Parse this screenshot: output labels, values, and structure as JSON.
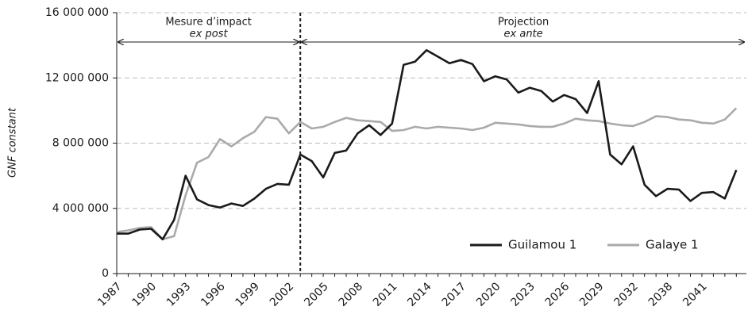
{
  "chart_data": {
    "type": "line",
    "y_label": "GNF constant",
    "annotations": [
      "Mesure d’impact",
      "ex post",
      "Projection",
      "ex ante"
    ],
    "categories": [
      "1987",
      null,
      null,
      "1990",
      null,
      null,
      "1993",
      null,
      null,
      "1996",
      null,
      null,
      "1999",
      null,
      null,
      "2002",
      null,
      null,
      "2005",
      null,
      null,
      "2008",
      null,
      null,
      "2011",
      null,
      null,
      "2014",
      null,
      null,
      "2017",
      null,
      null,
      "2020",
      null,
      null,
      "2023",
      null,
      null,
      "2026",
      null,
      null,
      "2029",
      null,
      null,
      "2032",
      null,
      null,
      "2038",
      null,
      null,
      "2041",
      null,
      null,
      null
    ],
    "series": [
      {
        "name": "Guilamou 1",
        "color": "#1a1a1a",
        "values": [
          2450000,
          2450000,
          2700000,
          2750000,
          2100000,
          3300000,
          6000000,
          4550000,
          4200000,
          4050000,
          4300000,
          4150000,
          4600000,
          5200000,
          5500000,
          5450000,
          7300000,
          6900000,
          5900000,
          7400000,
          7550000,
          8600000,
          9100000,
          8500000,
          9200000,
          12800000,
          13000000,
          13700000,
          13300000,
          12900000,
          13100000,
          12850000,
          11800000,
          12100000,
          11900000,
          11100000,
          11400000,
          11200000,
          10550000,
          10950000,
          10700000,
          9850000,
          11800000,
          7300000,
          6700000,
          7800000,
          5450000,
          4750000,
          5200000,
          5150000,
          4450000,
          4950000,
          5000000,
          4600000,
          6350000
        ]
      },
      {
        "name": "Galaye 1",
        "color": "#aaaaaa",
        "values": [
          2550000,
          2650000,
          2800000,
          2850000,
          2100000,
          2300000,
          4800000,
          6800000,
          7150000,
          8250000,
          7800000,
          8300000,
          8700000,
          9600000,
          9500000,
          8600000,
          9300000,
          8900000,
          9000000,
          9300000,
          9550000,
          9400000,
          9350000,
          9300000,
          8750000,
          8800000,
          9000000,
          8900000,
          9000000,
          8950000,
          8900000,
          8800000,
          8950000,
          9250000,
          9200000,
          9150000,
          9050000,
          9000000,
          9000000,
          9200000,
          9500000,
          9400000,
          9350000,
          9200000,
          9100000,
          9050000,
          9300000,
          9650000,
          9600000,
          9450000,
          9400000,
          9250000,
          9200000,
          9450000,
          10150000
        ]
      }
    ],
    "ylim": [
      0,
      16000000
    ],
    "yticks": [
      0,
      {
        "value": 4000000,
        "label": "4 000 000"
      },
      {
        "value": 8000000,
        "label": "8 000 000"
      },
      {
        "value": 12000000,
        "label": "12 000 000"
      },
      {
        "value": 16000000,
        "label": "16 000 000"
      }
    ],
    "grid": true,
    "legend": "bottom-right"
  }
}
